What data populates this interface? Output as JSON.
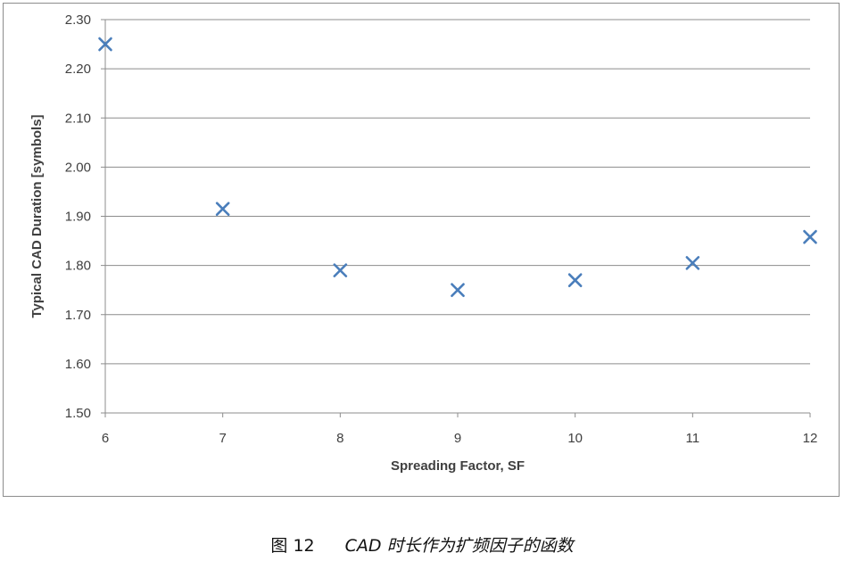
{
  "chart_data": {
    "type": "scatter",
    "title": "",
    "xlabel": "Spreading Factor, SF",
    "ylabel": "Typical CAD Duration [symbols]",
    "xlim": [
      6,
      12
    ],
    "ylim": [
      1.5,
      2.3
    ],
    "x_ticks": [
      "6",
      "7",
      "8",
      "9",
      "10",
      "11",
      "12"
    ],
    "y_ticks": [
      "1.50",
      "1.60",
      "1.70",
      "1.80",
      "1.90",
      "2.00",
      "2.10",
      "2.20",
      "2.30"
    ],
    "grid": "horizontal",
    "marker": "x",
    "marker_color": "#4a7ebb",
    "series": [
      {
        "x": [
          6,
          7,
          8,
          9,
          10,
          11,
          12
        ],
        "y": [
          2.25,
          1.915,
          1.79,
          1.75,
          1.77,
          1.805,
          1.858
        ]
      }
    ]
  },
  "caption": {
    "figure_number": "图 12",
    "text": "CAD 时长作为扩频因子的函数"
  }
}
